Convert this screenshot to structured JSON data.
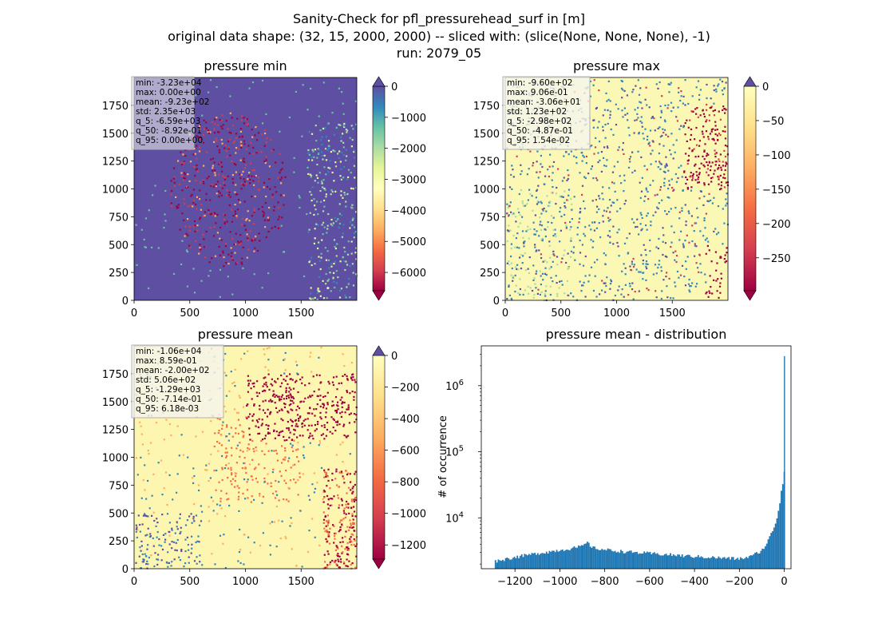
{
  "figure": {
    "title_lines": [
      "Sanity-Check for pfl_pressurehead_surf in [m]",
      "original data shape: (32, 15, 2000, 2000) -- sliced with: (slice(None, None, None), -1)",
      "run: 2079_05"
    ]
  },
  "panels": {
    "min": {
      "title": "pressure min",
      "stats": [
        "min: -3.23e+04",
        "max: 0.00e+00",
        "mean: -9.23e+02",
        "std: 2.35e+03",
        "q_5: -6.59e+03",
        "q_50: -8.92e-01",
        "q_95: 0.00e+00"
      ],
      "x_ticks": [
        "0",
        "500",
        "1000",
        "1500"
      ],
      "y_ticks": [
        "0",
        "250",
        "500",
        "750",
        "1000",
        "1250",
        "1500",
        "1750"
      ],
      "colorbar_ticks": [
        "0",
        "−1000",
        "−2000",
        "−3000",
        "−4000",
        "−5000",
        "−6000"
      ],
      "colorbar_range": [
        -6590,
        0
      ],
      "colormap": "Spectral"
    },
    "max": {
      "title": "pressure max",
      "stats": [
        "min: -9.60e+02",
        "max: 9.06e-01",
        "mean: -3.06e+01",
        "std: 1.23e+02",
        "q_5: -2.98e+02",
        "q_50: -4.87e-01",
        "q_95: 1.54e-02"
      ],
      "x_ticks": [
        "0",
        "500",
        "1000",
        "1500"
      ],
      "y_ticks": [
        "0",
        "250",
        "500",
        "750",
        "1000",
        "1250",
        "1500",
        "1750"
      ],
      "colorbar_ticks": [
        "0",
        "−50",
        "−100",
        "−150",
        "−200",
        "−250"
      ],
      "colorbar_range": [
        -298,
        0
      ],
      "colormap": "Spectral"
    },
    "mean": {
      "title": "pressure mean",
      "stats": [
        "min: -1.06e+04",
        "max: 8.59e-01",
        "mean: -2.00e+02",
        "std: 5.06e+02",
        "q_5: -1.29e+03",
        "q_50: -7.14e-01",
        "q_95: 6.18e-03"
      ],
      "x_ticks": [
        "0",
        "500",
        "1000",
        "1500"
      ],
      "y_ticks": [
        "0",
        "250",
        "500",
        "750",
        "1000",
        "1250",
        "1500",
        "1750"
      ],
      "colorbar_ticks": [
        "0",
        "−200",
        "−400",
        "−600",
        "−800",
        "−1000",
        "−1200"
      ],
      "colorbar_range": [
        -1290,
        0
      ],
      "colormap": "Spectral"
    }
  },
  "chart_data": [
    {
      "type": "heatmap",
      "title": "pressure min",
      "xlim": [
        0,
        2000
      ],
      "ylim": [
        0,
        2000
      ],
      "color_range": [
        -6590,
        0
      ]
    },
    {
      "type": "heatmap",
      "title": "pressure max",
      "xlim": [
        0,
        2000
      ],
      "ylim": [
        0,
        2000
      ],
      "color_range": [
        -298,
        0
      ]
    },
    {
      "type": "heatmap",
      "title": "pressure mean",
      "xlim": [
        0,
        2000
      ],
      "ylim": [
        0,
        2000
      ],
      "color_range": [
        -1290,
        0
      ]
    },
    {
      "type": "bar",
      "title": "pressure mean - distribution",
      "xlabel": "",
      "ylabel": "# of occurrence",
      "x_ticks": [
        "−1200",
        "−1000",
        "−800",
        "−600",
        "−400",
        "−200",
        "0"
      ],
      "y_ticks": [
        "10^4",
        "10^5",
        "10^6"
      ],
      "xlim": [
        -1350,
        30
      ],
      "ylim": [
        1700,
        4000000
      ],
      "log_y": true,
      "bar_color": "#1f77b4",
      "bin_width": 6.5,
      "x": [
        -1290,
        -1200,
        -1100,
        -1000,
        -950,
        -900,
        -880,
        -850,
        -800,
        -700,
        -600,
        -500,
        -400,
        -300,
        -200,
        -150,
        -100,
        -80,
        -60,
        -40,
        -30,
        -20,
        -15,
        -10,
        -8,
        -5,
        -3,
        -1,
        0
      ],
      "values": [
        2200,
        2550,
        2900,
        3250,
        3450,
        3700,
        4250,
        3500,
        3300,
        3050,
        2900,
        2750,
        2600,
        2500,
        2400,
        2600,
        3200,
        4000,
        5500,
        8000,
        11000,
        16000,
        22000,
        32000,
        38000,
        30000,
        120000,
        2800000,
        50000
      ]
    }
  ]
}
